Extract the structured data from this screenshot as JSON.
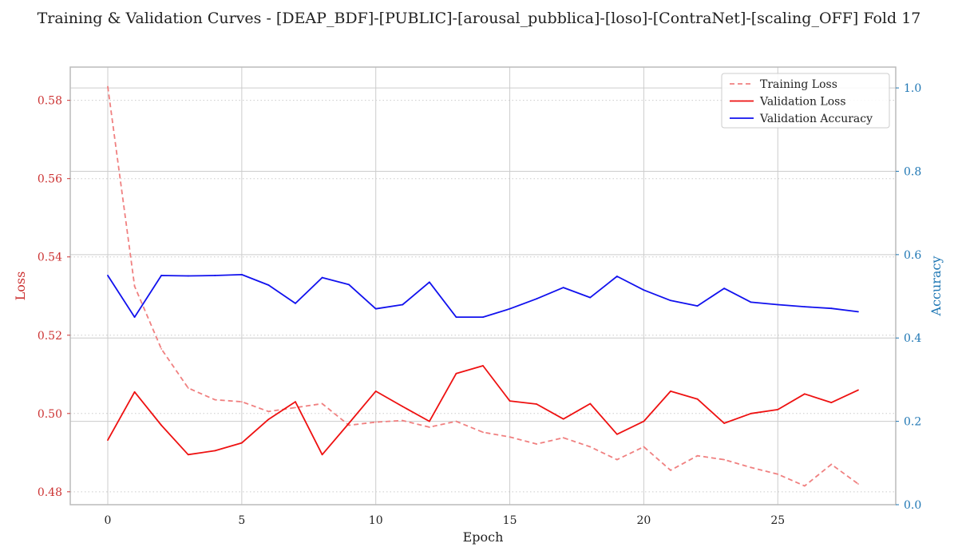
{
  "chart_data": {
    "type": "line",
    "title": "Training & Validation Curves - [DEAP_BDF]-[PUBLIC]-[arousal_pubblica]-[loso]-[ContraNet]-[scaling_OFF] Fold 17",
    "xlabel": "Epoch",
    "ylabel_left": "Loss",
    "ylabel_right": "Accuracy",
    "xlim": [
      -1.4,
      29.4
    ],
    "ylim_left": [
      0.4767,
      0.5885
    ],
    "ylim_right": [
      0.0,
      1.05
    ],
    "x_ticks": [
      0,
      5,
      10,
      15,
      20,
      25
    ],
    "y_ticks_left": [
      0.48,
      0.5,
      0.52,
      0.54,
      0.56,
      0.58
    ],
    "y_tick_labels_left": [
      "0.48",
      "0.50",
      "0.52",
      "0.54",
      "0.56",
      "0.58"
    ],
    "y_ticks_right": [
      0.0,
      0.2,
      0.4,
      0.6,
      0.8,
      1.0
    ],
    "y_tick_labels_right": [
      "0.0",
      "0.2",
      "0.4",
      "0.6",
      "0.8",
      "1.0"
    ],
    "x": [
      0,
      1,
      2,
      3,
      4,
      5,
      6,
      7,
      8,
      9,
      10,
      11,
      12,
      13,
      14,
      15,
      16,
      17,
      18,
      19,
      20,
      21,
      22,
      23,
      24,
      25,
      26,
      27,
      28
    ],
    "series": [
      {
        "name": "Training Loss",
        "axis": "left",
        "color": "#f08080",
        "dashed": true,
        "values": [
          0.5835,
          0.5325,
          0.5165,
          0.5065,
          0.5035,
          0.503,
          0.5005,
          0.5015,
          0.5025,
          0.497,
          0.4978,
          0.4982,
          0.4965,
          0.498,
          0.4952,
          0.494,
          0.4922,
          0.4938,
          0.4915,
          0.4882,
          0.4915,
          0.4855,
          0.4892,
          0.4882,
          0.4862,
          0.4845,
          0.4815,
          0.487,
          0.482
        ]
      },
      {
        "name": "Validation Loss",
        "axis": "left",
        "color": "#ee1111",
        "dashed": false,
        "values": [
          0.4932,
          0.5055,
          0.497,
          0.4895,
          0.4905,
          0.4925,
          0.4985,
          0.503,
          0.4895,
          0.4975,
          0.5057,
          0.5018,
          0.498,
          0.5102,
          0.5122,
          0.5032,
          0.5024,
          0.4986,
          0.5025,
          0.4947,
          0.498,
          0.5057,
          0.5037,
          0.4975,
          0.5,
          0.501,
          0.505,
          0.5028,
          0.506
        ]
      },
      {
        "name": "Validation Accuracy",
        "axis": "right",
        "color": "#1111ee",
        "dashed": false,
        "values": [
          0.55,
          0.45,
          0.55,
          0.549,
          0.55,
          0.552,
          0.527,
          0.483,
          0.545,
          0.528,
          0.47,
          0.48,
          0.534,
          0.45,
          0.45,
          0.47,
          0.494,
          0.521,
          0.497,
          0.548,
          0.515,
          0.49,
          0.477,
          0.519,
          0.486,
          0.48,
          0.475,
          0.471,
          0.463
        ]
      }
    ],
    "grid": true,
    "legend_position": "top-right",
    "colors": {
      "left_axis": "#cc3333",
      "right_axis": "#1f77b4",
      "grid": "#cccccc",
      "frame": "#bbbbbb"
    }
  }
}
